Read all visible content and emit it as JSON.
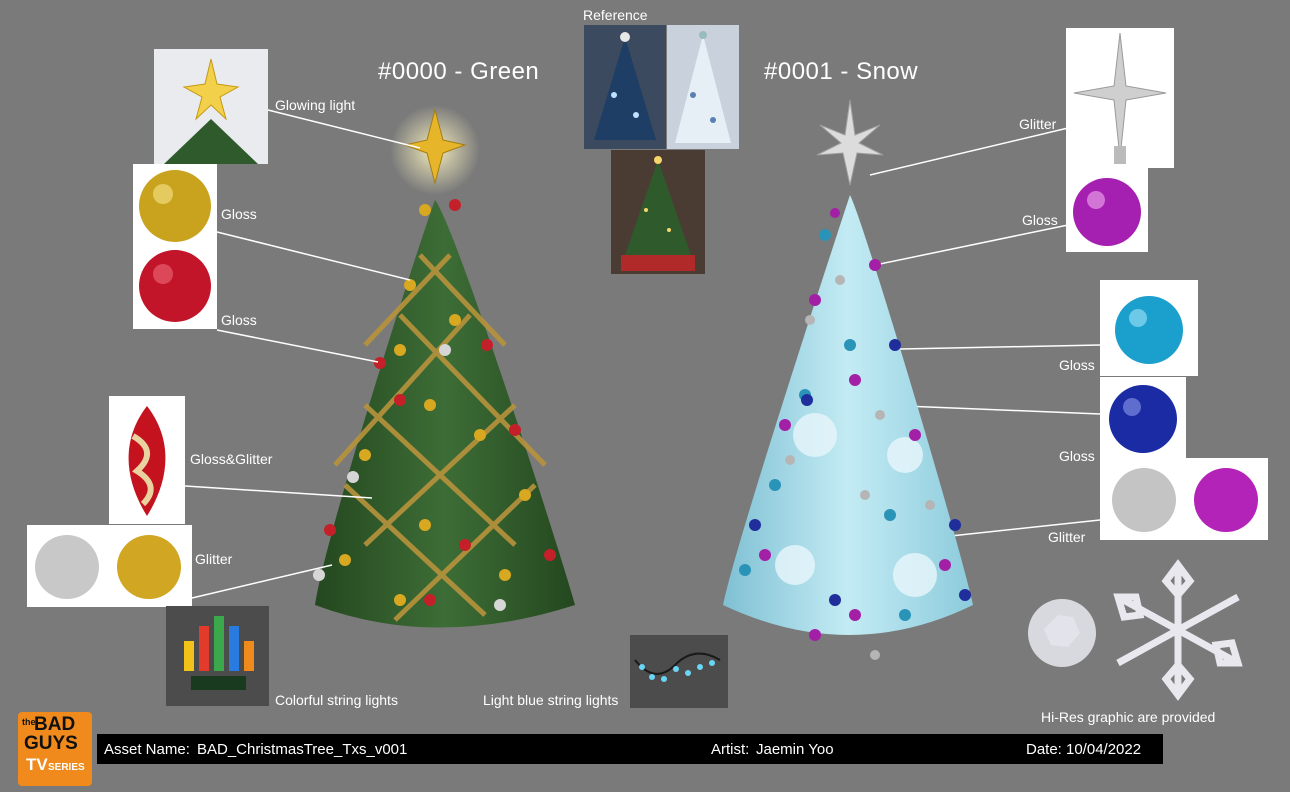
{
  "reference_label": "Reference",
  "variants": [
    {
      "title": "#0000 - Green"
    },
    {
      "title": "#0001 - Snow"
    }
  ],
  "green_labels": {
    "star": "Glowing light",
    "gloss_gold": "Gloss",
    "gloss_red": "Gloss",
    "gloss_glitter": "Gloss&Glitter",
    "glitter": "Glitter",
    "lights": "Colorful string lights"
  },
  "snow_labels": {
    "star": "Glitter",
    "gloss_purple": "Gloss",
    "gloss_teal": "Gloss",
    "gloss_blue": "Gloss",
    "glitter": "Glitter",
    "lights": "Light blue string lights",
    "snowflake_note": "Hi-Res graphic are provided"
  },
  "footer": {
    "asset_name_label": "Asset Name:",
    "asset_name_value": "BAD_ChristmasTree_Txs_v001",
    "artist_label": "Artist:",
    "artist_value": "Jaemin Yoo",
    "date_label": "Date:",
    "date_value": "10/04/2022"
  },
  "logo": {
    "top": "the",
    "line1": "BAD",
    "line2": "GUYS",
    "line3": "TV",
    "line4": "SERIES"
  },
  "colors": {
    "background": "#7a7a7a",
    "green_tree": "#2f5a2c",
    "snow_tree": "#a8dbe8",
    "footer_bar": "#000000",
    "logo": "#f08a1c"
  }
}
